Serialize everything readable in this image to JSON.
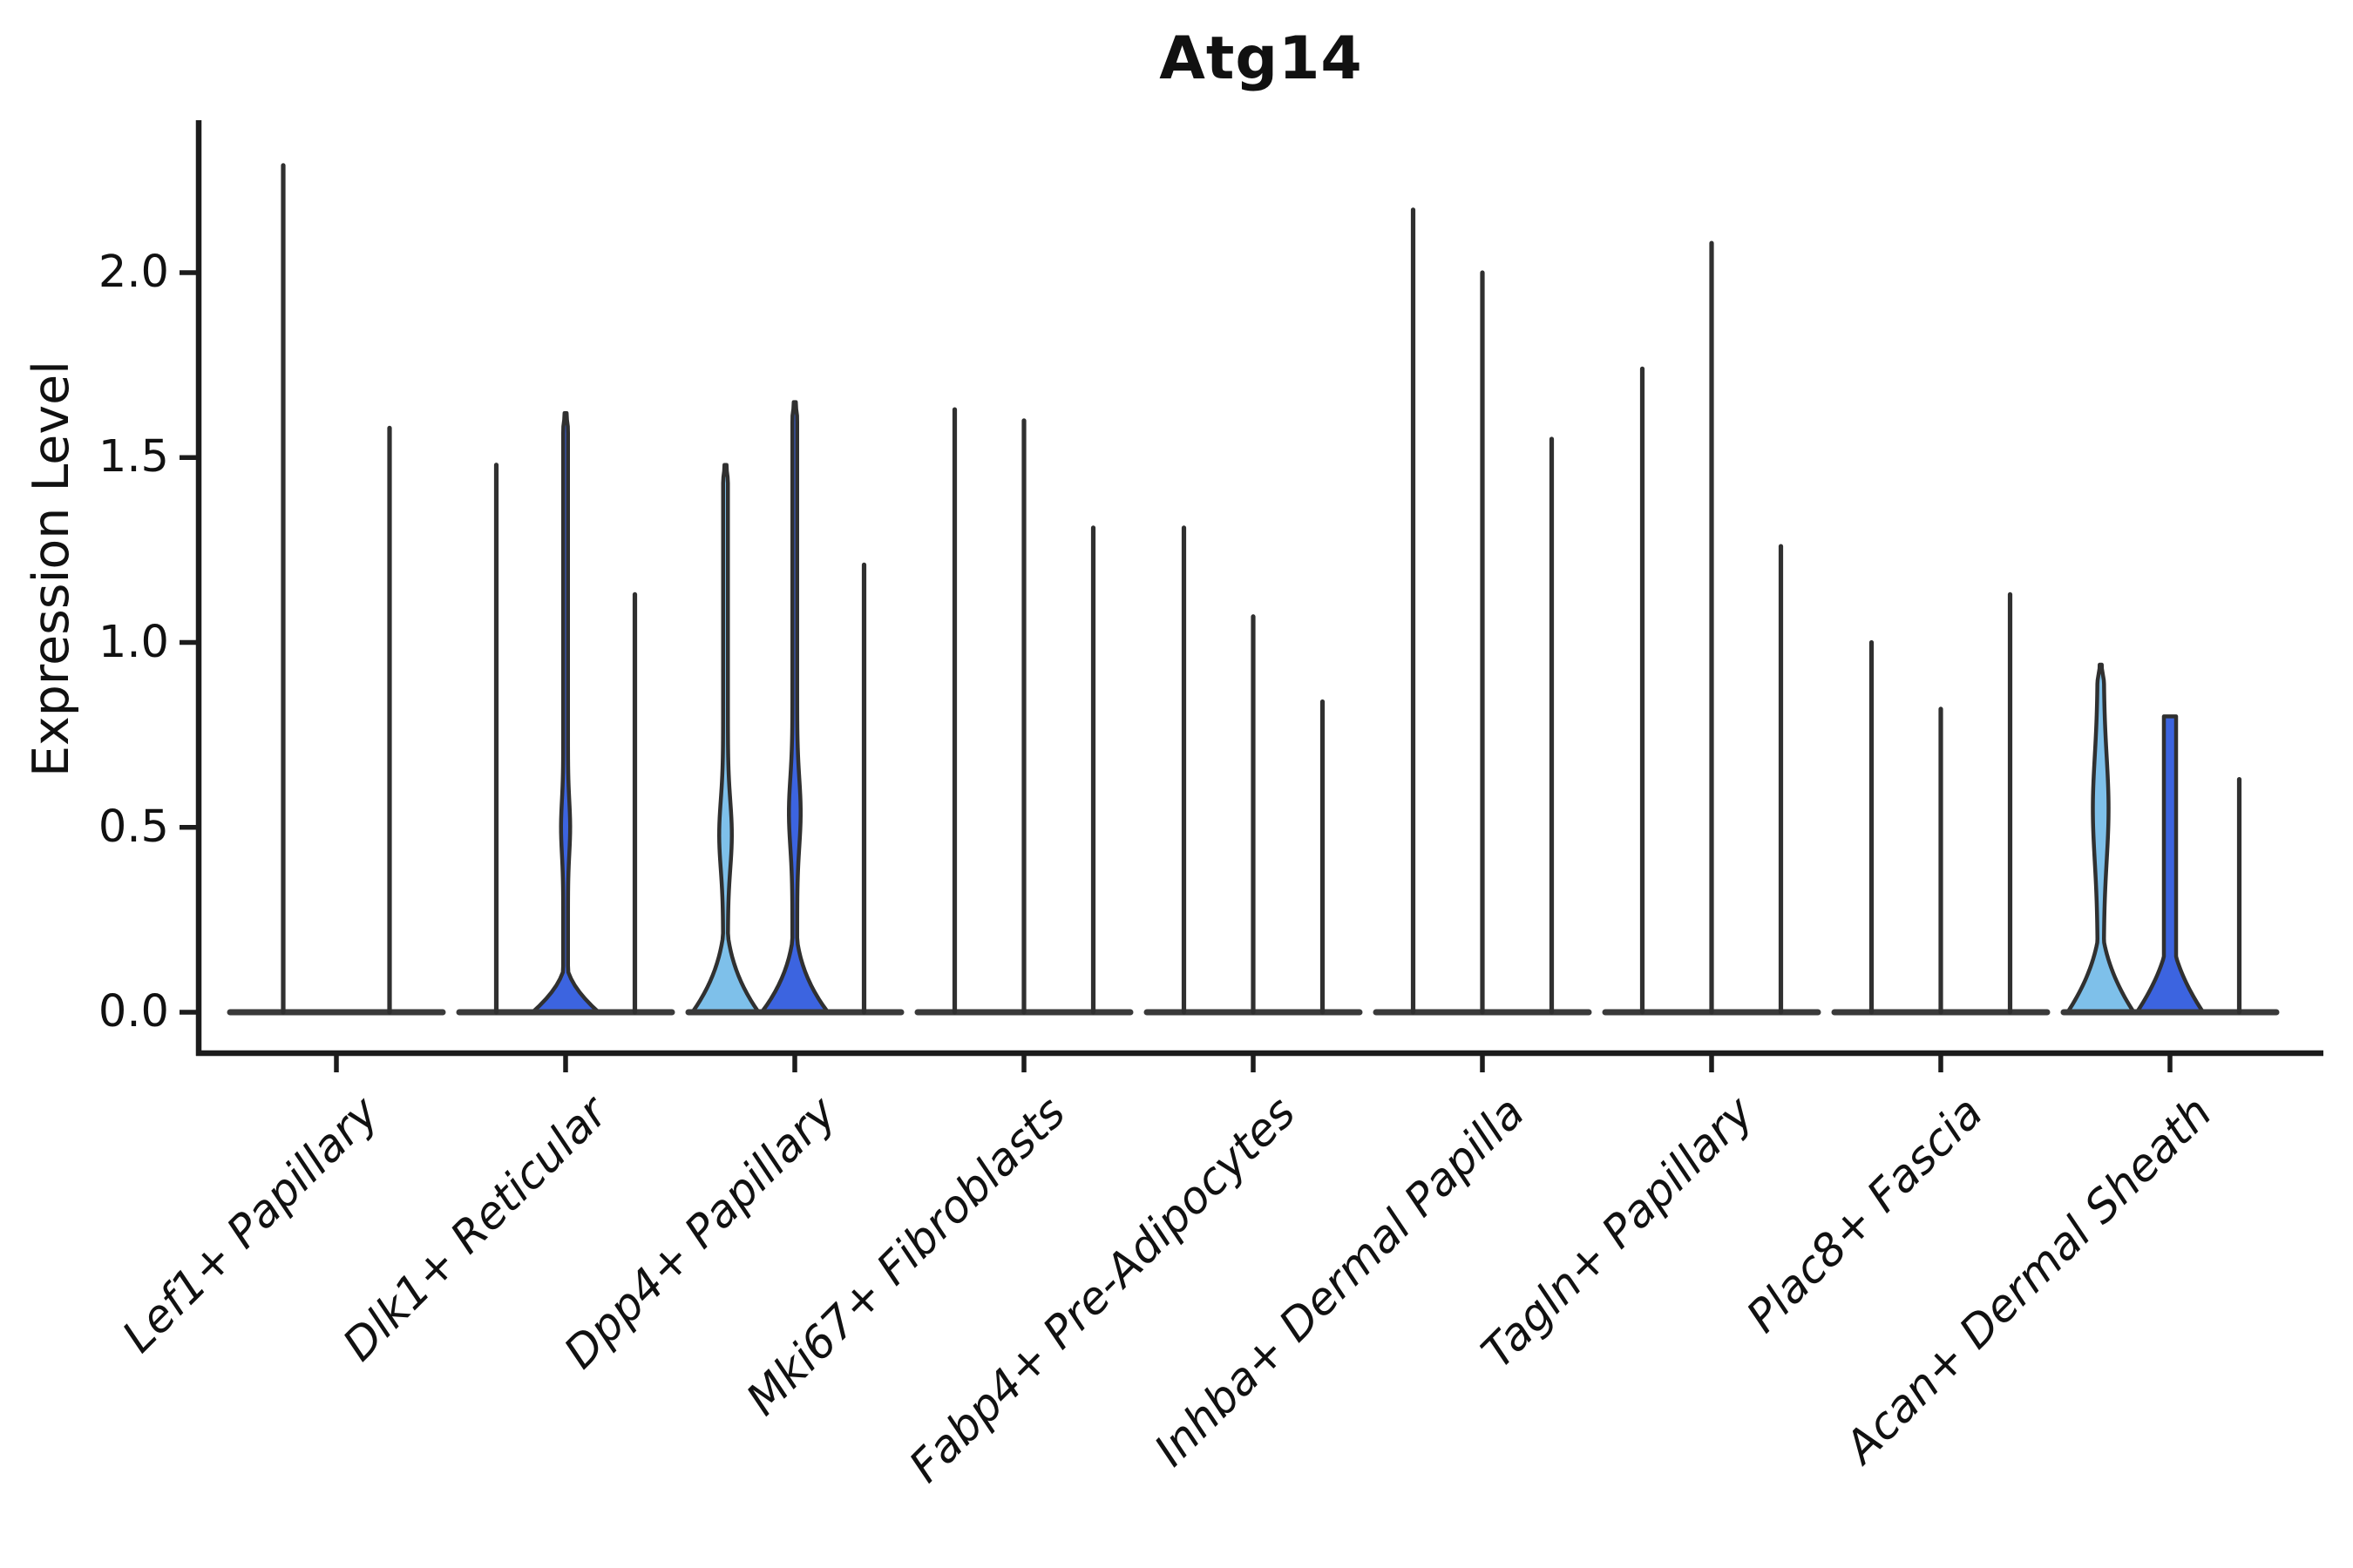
{
  "title": "Atg14",
  "y_axis": {
    "label": "Expression Level"
  },
  "colors": {
    "light_blue": "#7ec0ea",
    "royal_blue": "#3c64e0",
    "outline": "#303030",
    "axis": "#1c1c1c",
    "baseline": "#3a3a3a"
  },
  "chart_data": {
    "type": "violin",
    "title": "Atg14",
    "ylabel": "Expression Level",
    "xlabel": "",
    "ylim": [
      -0.11,
      2.41
    ],
    "yticks": [
      0.0,
      0.5,
      1.0,
      1.5,
      2.0
    ],
    "ytick_labels": [
      "0.0",
      "0.5",
      "1.0",
      "1.5",
      "2.0"
    ],
    "legend": "none",
    "grid": "off",
    "categories": [
      "Lef1+ Papillary",
      "Dlk1+ Reticular",
      "Dpp4+ Papillary",
      "Mki67+ Fibroblasts",
      "Fabp4+ Pre-Adipocytes",
      "Inhba+ Dermal Papilla",
      "Tagln+ Papillary",
      "Plac8+ Fascia",
      "Acan+ Dermal Sheath"
    ],
    "groups": [
      {
        "label": "Lef1+ Papillary",
        "violins": [
          {
            "max": 2.29,
            "fill": null
          },
          {
            "max": 1.58,
            "fill": null
          }
        ]
      },
      {
        "label": "Dlk1+ Reticular",
        "violins": [
          {
            "max": 1.48,
            "fill": null
          },
          {
            "max": 1.62,
            "fill": "royal_blue",
            "lens": {
              "center": 0.5,
              "sigma": 0.1,
              "half": 2.5
            },
            "bell": {
              "height": 0.14,
              "power": 1.8
            }
          },
          {
            "max": 1.13,
            "fill": null
          }
        ]
      },
      {
        "label": "Dpp4+ Papillary",
        "violins": [
          {
            "max": 1.48,
            "fill": "light_blue",
            "lens": {
              "center": 0.48,
              "sigma": 0.13,
              "half": 4.5
            },
            "bell": {
              "height": 0.3,
              "power": 2.4
            }
          },
          {
            "max": 1.65,
            "fill": "royal_blue",
            "lens": {
              "center": 0.54,
              "sigma": 0.13,
              "half": 4.0
            },
            "bell": {
              "height": 0.28,
              "power": 2.4
            }
          },
          {
            "max": 1.21,
            "fill": null
          }
        ]
      },
      {
        "label": "Mki67+ Fibroblasts",
        "violins": [
          {
            "max": 1.63,
            "fill": null
          },
          {
            "max": 1.6,
            "fill": null
          },
          {
            "max": 1.31,
            "fill": null
          }
        ]
      },
      {
        "label": "Fabp4+ Pre-Adipocytes",
        "violins": [
          {
            "max": 1.31,
            "fill": null
          },
          {
            "max": 1.07,
            "fill": null
          },
          {
            "max": 0.84,
            "fill": null
          }
        ]
      },
      {
        "label": "Inhba+ Dermal Papilla",
        "violins": [
          {
            "max": 2.17,
            "fill": null
          },
          {
            "max": 2.0,
            "fill": null
          },
          {
            "max": 1.55,
            "fill": null
          }
        ]
      },
      {
        "label": "Tagln+ Papillary",
        "violins": [
          {
            "max": 1.74,
            "fill": null
          },
          {
            "max": 2.08,
            "fill": null
          },
          {
            "max": 1.26,
            "fill": null
          }
        ]
      },
      {
        "label": "Plac8+ Fascia",
        "violins": [
          {
            "max": 1.0,
            "fill": null
          },
          {
            "max": 0.82,
            "fill": null
          },
          {
            "max": 1.13,
            "fill": null
          }
        ]
      },
      {
        "label": "Acan+ Dermal Sheath",
        "violins": [
          {
            "max": 0.94,
            "fill": "light_blue",
            "stem_half": 3.5,
            "lens": {
              "center": 0.55,
              "sigma": 0.2,
              "half": 5.5
            },
            "bell": {
              "height": 0.27,
              "power": 2.0
            }
          },
          {
            "max": 0.8,
            "fill": "royal_blue",
            "stem_half": 7.0,
            "blunt_top": true,
            "bell": {
              "height": 0.24,
              "power": 1.8
            }
          },
          {
            "max": 0.63,
            "fill": null
          }
        ]
      }
    ]
  }
}
